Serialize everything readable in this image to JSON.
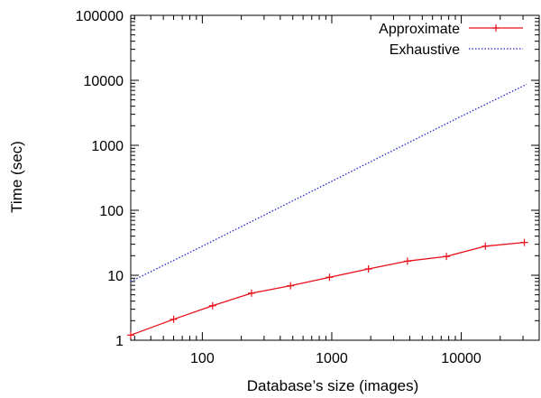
{
  "chart_data": {
    "type": "line",
    "title": "",
    "xlabel": "Database’s size (images)",
    "ylabel": "Time (sec)",
    "xscale": "log",
    "yscale": "log",
    "xlim": [
      28,
      40000
    ],
    "ylim": [
      1,
      100000
    ],
    "x_ticks": [
      100,
      1000,
      10000
    ],
    "x_tick_labels": [
      "100",
      "1000",
      "10000"
    ],
    "y_ticks": [
      1,
      10,
      100,
      1000,
      10000,
      100000
    ],
    "y_tick_labels": [
      "1",
      "10",
      "100",
      "1000",
      "10000",
      "100000"
    ],
    "grid": false,
    "legend_position": "top-right",
    "series": [
      {
        "name": "Approximate",
        "color": "#e8101a",
        "style": "solid",
        "marker": "plus",
        "points": [
          [
            28,
            1.2
          ],
          [
            60,
            2.1
          ],
          [
            120,
            3.4
          ],
          [
            240,
            5.3
          ],
          [
            480,
            6.9
          ],
          [
            960,
            9.3
          ],
          [
            1920,
            12.5
          ],
          [
            3840,
            16.5
          ],
          [
            7680,
            19.5
          ],
          [
            15360,
            28
          ],
          [
            30720,
            32
          ]
        ]
      },
      {
        "name": "Exhaustive",
        "color": "#2323d0",
        "style": "dotted",
        "marker": "none",
        "points": [
          [
            28,
            8
          ],
          [
            100,
            28
          ],
          [
            1000,
            280
          ],
          [
            10000,
            2800
          ],
          [
            32000,
            8700
          ]
        ]
      }
    ]
  }
}
